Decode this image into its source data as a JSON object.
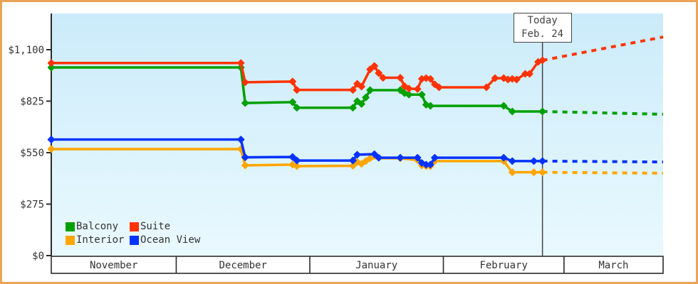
{
  "frame": {
    "border_color": "#EBA457",
    "plot_gradient_top": "#CBEBFA",
    "plot_gradient_bottom": "#E9F9FE",
    "axis_color": "#2B2B2B"
  },
  "chart_data": {
    "type": "line",
    "x_axis": {
      "months": [
        "November",
        "December",
        "January",
        "February",
        "March"
      ],
      "month_start_days": [
        0,
        29,
        60,
        91,
        119
      ],
      "total_days": 142
    },
    "y_axis": {
      "tick_labels": [
        "$0",
        "$275",
        "$550",
        "$825",
        "$1,100"
      ],
      "tick_values": [
        0,
        275,
        550,
        825,
        1100
      ],
      "axis_max_dollars": 1100
    },
    "today": {
      "line1": "Today",
      "line2": "Feb. 24",
      "day": 114
    },
    "series": [
      {
        "name": "Interior",
        "color": "#FFA500",
        "points": [
          [
            0,
            569
          ],
          [
            44,
            569
          ],
          [
            45,
            482
          ],
          [
            56,
            486
          ],
          [
            57,
            478
          ],
          [
            70,
            480
          ],
          [
            71,
            500
          ],
          [
            72,
            490
          ],
          [
            73,
            505
          ],
          [
            74,
            520
          ],
          [
            81,
            520
          ],
          [
            85,
            510
          ],
          [
            86,
            482
          ],
          [
            87,
            478
          ],
          [
            88,
            478
          ],
          [
            89,
            505
          ],
          [
            105,
            505
          ],
          [
            107,
            445
          ],
          [
            112,
            445
          ],
          [
            114,
            445
          ]
        ],
        "projection": [
          [
            114,
            445
          ],
          [
            142,
            440
          ]
        ]
      },
      {
        "name": "Ocean View",
        "color": "#0033FF",
        "points": [
          [
            0,
            620
          ],
          [
            44,
            620
          ],
          [
            45,
            525
          ],
          [
            56,
            527
          ],
          [
            57,
            508
          ],
          [
            70,
            508
          ],
          [
            71,
            539
          ],
          [
            75,
            542
          ],
          [
            76,
            523
          ],
          [
            81,
            523
          ],
          [
            85,
            523
          ],
          [
            86,
            495
          ],
          [
            87,
            486
          ],
          [
            88,
            486
          ],
          [
            89,
            523
          ],
          [
            105,
            523
          ],
          [
            107,
            505
          ],
          [
            112,
            505
          ],
          [
            114,
            505
          ]
        ],
        "projection": [
          [
            114,
            505
          ],
          [
            142,
            500
          ]
        ]
      },
      {
        "name": "Balcony",
        "color": "#00A000",
        "points": [
          [
            0,
            1005
          ],
          [
            44,
            1005
          ],
          [
            45,
            815
          ],
          [
            56,
            820
          ],
          [
            57,
            790
          ],
          [
            70,
            790
          ],
          [
            71,
            825
          ],
          [
            72,
            810
          ],
          [
            73,
            845
          ],
          [
            74,
            884
          ],
          [
            81,
            884
          ],
          [
            82,
            868
          ],
          [
            83,
            860
          ],
          [
            86,
            860
          ],
          [
            87,
            806
          ],
          [
            88,
            800
          ],
          [
            105,
            800
          ],
          [
            107,
            770
          ],
          [
            114,
            770
          ]
        ],
        "projection": [
          [
            114,
            770
          ],
          [
            142,
            755
          ]
        ]
      },
      {
        "name": "Suite",
        "color": "#FF3300",
        "points": [
          [
            0,
            1029
          ],
          [
            44,
            1029
          ],
          [
            45,
            926
          ],
          [
            56,
            930
          ],
          [
            57,
            885
          ],
          [
            70,
            885
          ],
          [
            71,
            918
          ],
          [
            72,
            903
          ],
          [
            74,
            995
          ],
          [
            75,
            1013
          ],
          [
            76,
            975
          ],
          [
            77,
            950
          ],
          [
            81,
            950
          ],
          [
            82,
            905
          ],
          [
            83,
            892
          ],
          [
            85,
            890
          ],
          [
            86,
            944
          ],
          [
            87,
            948
          ],
          [
            88,
            944
          ],
          [
            89,
            915
          ],
          [
            90,
            899
          ],
          [
            101,
            899
          ],
          [
            103,
            948
          ],
          [
            105,
            948
          ],
          [
            106,
            941
          ],
          [
            107,
            944
          ],
          [
            108,
            941
          ],
          [
            110,
            971
          ],
          [
            111,
            971
          ],
          [
            113,
            1035
          ],
          [
            114,
            1043
          ]
        ],
        "projection": [
          [
            114,
            1043
          ],
          [
            142,
            1168
          ]
        ]
      }
    ]
  }
}
